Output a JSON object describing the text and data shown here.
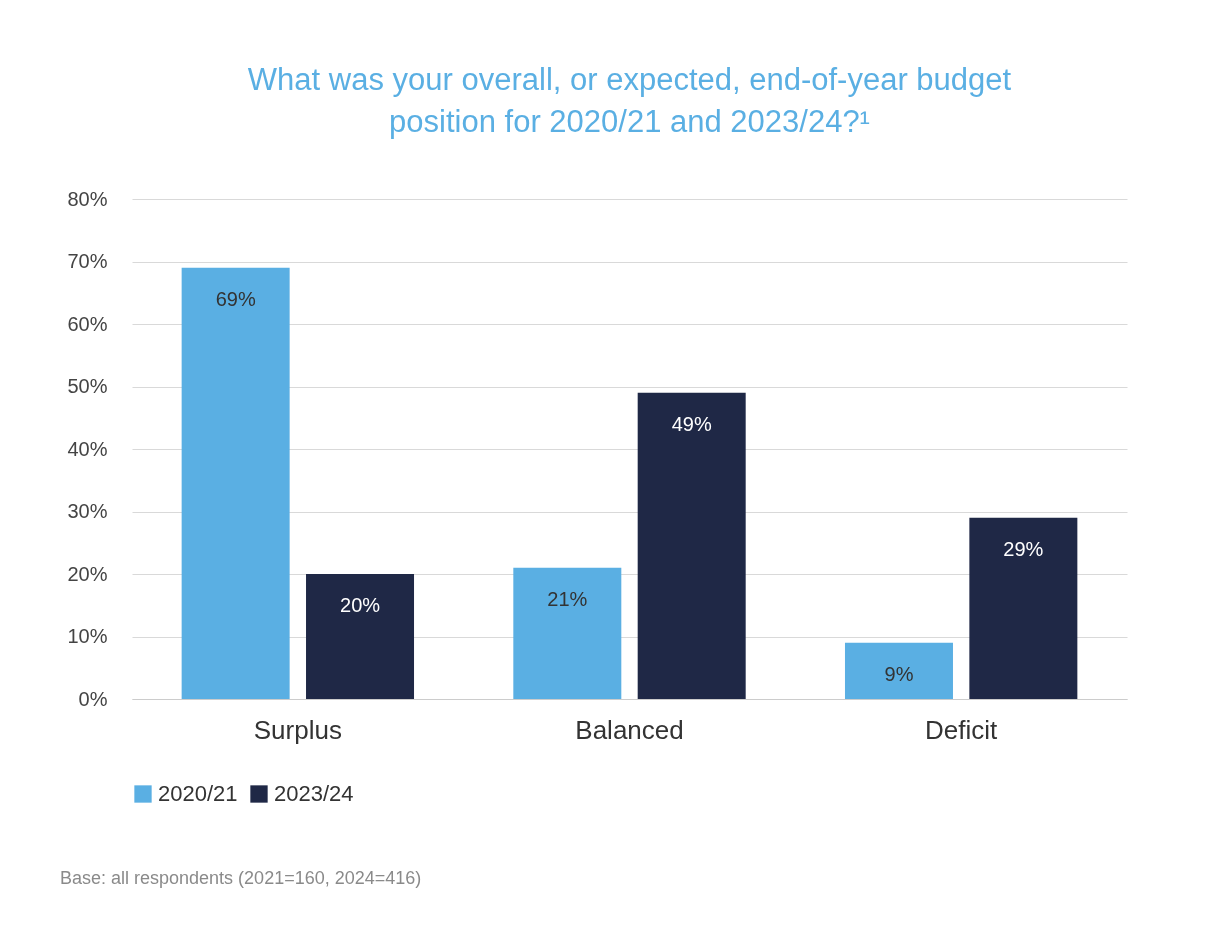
{
  "chart_data": {
    "type": "bar",
    "title": "What was your overall, or expected, end-of-year budget position for 2020/21 and 2023/24?¹",
    "categories": [
      "Surplus",
      "Balanced",
      "Deficit"
    ],
    "series": [
      {
        "name": "2020/21",
        "color": "#5aafe3",
        "values": [
          69,
          21,
          9
        ],
        "value_labels": [
          "69%",
          "21%",
          "9%"
        ]
      },
      {
        "name": "2023/24",
        "color": "#1f2846",
        "values": [
          20,
          49,
          29
        ],
        "value_labels": [
          "20%",
          "49%",
          "29%"
        ]
      }
    ],
    "ylim": [
      0,
      80
    ],
    "yticks": [
      {
        "value": 0,
        "label": "0%"
      },
      {
        "value": 10,
        "label": "10%"
      },
      {
        "value": 20,
        "label": "20%"
      },
      {
        "value": 30,
        "label": "30%"
      },
      {
        "value": 40,
        "label": "40%"
      },
      {
        "value": 50,
        "label": "50%"
      },
      {
        "value": 60,
        "label": "60%"
      },
      {
        "value": 70,
        "label": "70%"
      },
      {
        "value": 80,
        "label": "80%"
      }
    ],
    "grid": "y",
    "legend": "bottom",
    "annotations": [
      "Base: all respondents (2021=160, 2024=416)"
    ]
  }
}
